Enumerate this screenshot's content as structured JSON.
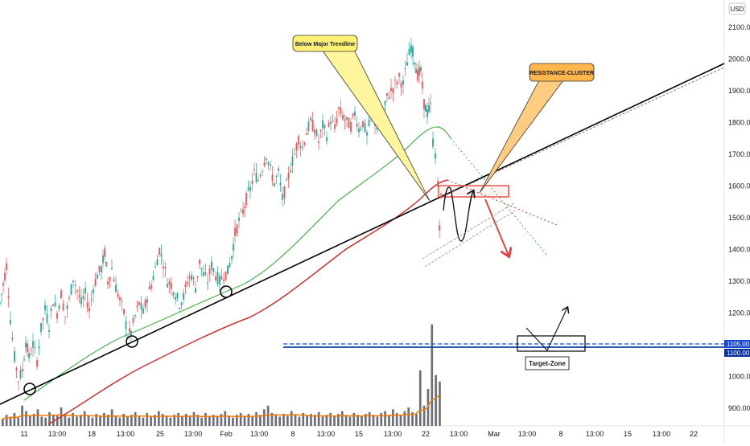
{
  "currency_badge": "USD",
  "chart_data": {
    "type": "candlestick",
    "y_axis": {
      "ticks": [
        900,
        1000,
        1100,
        1200,
        1300,
        1400,
        1500,
        1600,
        1700,
        1800,
        1900,
        2000,
        2100
      ],
      "tick_labels": [
        "900.00",
        "1000.00",
        "1100.00",
        "1200.00",
        "1300.00",
        "1400.00",
        "1500.00",
        "1600.00",
        "1700.00",
        "1800.00",
        "1900.00",
        "2000.00",
        "2100.00"
      ],
      "range": [
        860,
        2170
      ]
    },
    "x_axis": {
      "tick_labels": [
        "11",
        "13:00",
        "18",
        "13:00",
        "25",
        "13:00",
        "Feb",
        "13:00",
        "8",
        "13:00",
        "15",
        "13:00",
        "22",
        "13:00",
        "Mar",
        "13:00",
        "8",
        "13:00",
        "15",
        "13:00",
        "22"
      ]
    },
    "price_labels": [
      {
        "value": 1105,
        "label": "1105.00",
        "color": "#1848cc"
      },
      {
        "value": 1100,
        "label": "1100.00",
        "color": "#0c3299"
      }
    ],
    "price_path": [
      [
        0,
        1230
      ],
      [
        4,
        1290
      ],
      [
        8,
        1350
      ],
      [
        13,
        1180
      ],
      [
        18,
        1060
      ],
      [
        23,
        990
      ],
      [
        28,
        1020
      ],
      [
        32,
        1110
      ],
      [
        36,
        1060
      ],
      [
        41,
        1100
      ],
      [
        46,
        1050
      ],
      [
        51,
        1150
      ],
      [
        56,
        1210
      ],
      [
        61,
        1160
      ],
      [
        66,
        1240
      ],
      [
        71,
        1200
      ],
      [
        76,
        1260
      ],
      [
        81,
        1190
      ],
      [
        86,
        1240
      ],
      [
        91,
        1310
      ],
      [
        96,
        1270
      ],
      [
        101,
        1230
      ],
      [
        106,
        1260
      ],
      [
        111,
        1210
      ],
      [
        116,
        1280
      ],
      [
        121,
        1320
      ],
      [
        126,
        1340
      ],
      [
        130,
        1390
      ],
      [
        134,
        1300
      ],
      [
        139,
        1340
      ],
      [
        144,
        1280
      ],
      [
        149,
        1240
      ],
      [
        154,
        1200
      ],
      [
        159,
        1130
      ],
      [
        163,
        1140
      ],
      [
        168,
        1190
      ],
      [
        173,
        1230
      ],
      [
        178,
        1200
      ],
      [
        183,
        1250
      ],
      [
        188,
        1290
      ],
      [
        193,
        1340
      ],
      [
        198,
        1400
      ],
      [
        203,
        1360
      ],
      [
        208,
        1300
      ],
      [
        213,
        1290
      ],
      [
        218,
        1260
      ],
      [
        223,
        1230
      ],
      [
        228,
        1250
      ],
      [
        233,
        1300
      ],
      [
        238,
        1320
      ],
      [
        243,
        1280
      ],
      [
        248,
        1360
      ],
      [
        253,
        1320
      ],
      [
        258,
        1300
      ],
      [
        263,
        1350
      ],
      [
        268,
        1320
      ],
      [
        273,
        1300
      ],
      [
        278,
        1320
      ],
      [
        283,
        1330
      ],
      [
        288,
        1380
      ],
      [
        292,
        1450
      ],
      [
        297,
        1490
      ],
      [
        302,
        1520
      ],
      [
        306,
        1560
      ],
      [
        311,
        1590
      ],
      [
        316,
        1640
      ],
      [
        321,
        1620
      ],
      [
        326,
        1660
      ],
      [
        331,
        1700
      ],
      [
        336,
        1650
      ],
      [
        341,
        1610
      ],
      [
        346,
        1640
      ],
      [
        351,
        1560
      ],
      [
        356,
        1600
      ],
      [
        361,
        1660
      ],
      [
        366,
        1700
      ],
      [
        371,
        1750
      ],
      [
        376,
        1720
      ],
      [
        381,
        1770
      ],
      [
        386,
        1800
      ],
      [
        391,
        1780
      ],
      [
        396,
        1740
      ],
      [
        401,
        1790
      ],
      [
        406,
        1760
      ],
      [
        411,
        1810
      ],
      [
        416,
        1780
      ],
      [
        421,
        1840
      ],
      [
        426,
        1820
      ],
      [
        431,
        1800
      ],
      [
        436,
        1790
      ],
      [
        441,
        1830
      ],
      [
        446,
        1780
      ],
      [
        451,
        1800
      ],
      [
        456,
        1760
      ],
      [
        461,
        1820
      ],
      [
        466,
        1800
      ],
      [
        471,
        1780
      ],
      [
        476,
        1820
      ],
      [
        481,
        1880
      ],
      [
        486,
        1900
      ],
      [
        491,
        1920
      ],
      [
        496,
        1940
      ],
      [
        501,
        1920
      ],
      [
        506,
        1990
      ],
      [
        511,
        2040
      ],
      [
        515,
        2000
      ],
      [
        519,
        1950
      ],
      [
        523,
        1960
      ],
      [
        527,
        1860
      ],
      [
        531,
        1830
      ],
      [
        535,
        1850
      ],
      [
        538,
        1740
      ],
      [
        541,
        1700
      ],
      [
        544,
        1600
      ],
      [
        546,
        1480
      ],
      [
        548,
        1560
      ],
      [
        550,
        1510
      ]
    ],
    "volume_heights": [
      8,
      12,
      10,
      14,
      9,
      22,
      16,
      11,
      13,
      18,
      10,
      9,
      15,
      12,
      11,
      20,
      13,
      9,
      14,
      10,
      12,
      16,
      11,
      9,
      13,
      10,
      14,
      12,
      18,
      11,
      9,
      13,
      10,
      12,
      15,
      11,
      9,
      14,
      10,
      12,
      16,
      13,
      11,
      9,
      12,
      14,
      10,
      13,
      11,
      15,
      12,
      9,
      14,
      10,
      12,
      11,
      13,
      16,
      10,
      9,
      12,
      14,
      11,
      13,
      10,
      15,
      12,
      18,
      22,
      14,
      12,
      10,
      13,
      11,
      16,
      12,
      10,
      14,
      11,
      13,
      12,
      15,
      10,
      12,
      14,
      11,
      13,
      16,
      12,
      10,
      14,
      12,
      11,
      13,
      15,
      12,
      10,
      14,
      16,
      12,
      18,
      14,
      12,
      16,
      20,
      15,
      13,
      60,
      22,
      40,
      110,
      55,
      48
    ],
    "annotations": [
      {
        "text": "Below Major Trendline",
        "color": "#fff176"
      },
      {
        "text": "RESISTANCE-CLUSTER",
        "color": "#ffb74d"
      },
      {
        "text": "Target-Zone",
        "color": "#ffffff"
      }
    ],
    "colors": {
      "bull": "#26a69a",
      "bear": "#ef5350",
      "ma_green": "#4caf50",
      "ma_red": "#d32f2f",
      "trendline": "#000000",
      "target_line": "#0d47a1",
      "projection": "#e53935",
      "volume": "#6b6e78",
      "volume_ma": "#f57c00"
    },
    "grid": false
  }
}
